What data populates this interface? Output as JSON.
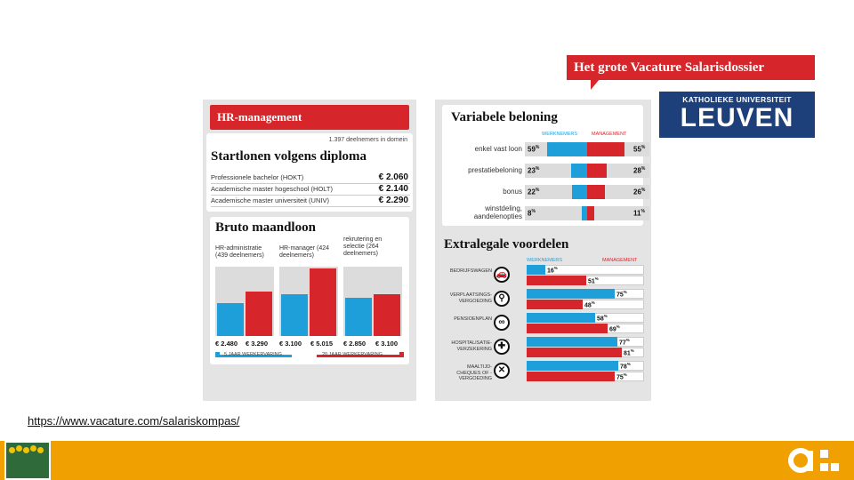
{
  "banner": {
    "title": "Het grote Vacature Salarisdossier"
  },
  "logo": {
    "top": "KATHOLIEKE UNIVERSITEIT",
    "bottom": "LEUVEN"
  },
  "hr_panel": {
    "title": "HR-management",
    "participants": "1.397 deelnemers in domein",
    "startloon_title": "Startlonen volgens diploma",
    "startloon_rows": [
      {
        "label": "Professionele bachelor (HOKT)",
        "value": "€ 2.060"
      },
      {
        "label": "Academische master hogeschool (HOLT)",
        "value": "€ 2.140"
      },
      {
        "label": "Academische master universiteit (UNIV)",
        "value": "€ 2.290"
      }
    ],
    "bruto_title": "Bruto maandloon",
    "groups": [
      {
        "label": "HR-administratie (439 deelnemers)",
        "blue": "€ 2.480",
        "red": "€ 3.290",
        "blue_frac": 0.48,
        "red_frac": 0.64
      },
      {
        "label": "HR-manager (424 deelnemers)",
        "blue": "€ 3.100",
        "red": "€ 5.015",
        "blue_frac": 0.6,
        "red_frac": 0.97
      },
      {
        "label": "rekrutering en selectie (264 deelnemers)",
        "blue": "€ 2.850",
        "red": "€ 3.100",
        "blue_frac": 0.55,
        "red_frac": 0.6
      }
    ],
    "legend_blue": "5 JAAR WERKERVARING",
    "legend_red": "20 JAAR WERKERVARING"
  },
  "variabele": {
    "title": "Variabele beloning",
    "header_wn": "WERKNEMERS",
    "header_mg": "MANAGEMENT",
    "rows": [
      {
        "label": "enkel vast loon",
        "wn": "59",
        "mg": "55",
        "wn_frac": 0.59,
        "mg_frac": 0.55
      },
      {
        "label": "prestatiebeloning",
        "wn": "23",
        "mg": "28",
        "wn_frac": 0.23,
        "mg_frac": 0.28
      },
      {
        "label": "bonus",
        "wn": "22",
        "mg": "26",
        "wn_frac": 0.22,
        "mg_frac": 0.26
      },
      {
        "label": "winstdeling, aandelenopties",
        "wn": "8",
        "mg": "11",
        "wn_frac": 0.08,
        "mg_frac": 0.11
      }
    ],
    "pct": "%"
  },
  "extralegale": {
    "title": "Extralegale voordelen",
    "header_wn": "WERKNEMERS",
    "header_mg": "MANAGEMENT",
    "rows": [
      {
        "label": "BEDRIJFSWAGEN",
        "icon": "car-icon",
        "glyph": "🚗",
        "wn": "16",
        "mg": "51",
        "wn_frac": 0.16,
        "mg_frac": 0.51
      },
      {
        "label": "VERPLAATSINGS-VERGOEDING",
        "icon": "bike-icon",
        "glyph": "⚲",
        "wn": "75",
        "mg": "48",
        "wn_frac": 0.75,
        "mg_frac": 0.48
      },
      {
        "label": "PENSIOENPLAN",
        "icon": "glasses-icon",
        "glyph": "∞",
        "wn": "58",
        "mg": "69",
        "wn_frac": 0.58,
        "mg_frac": 0.69
      },
      {
        "label": "HOSPITALISATIE-VERZEKERING",
        "icon": "medical-cross-icon",
        "glyph": "✚",
        "wn": "77",
        "mg": "81",
        "wn_frac": 0.77,
        "mg_frac": 0.81
      },
      {
        "label": "MAALTIJD-CHEQUES OF -VERGOEDING",
        "icon": "cutlery-icon",
        "glyph": "✕",
        "wn": "78",
        "mg": "75",
        "wn_frac": 0.78,
        "mg_frac": 0.75
      }
    ],
    "pct": "%"
  },
  "source_link": "https://www.vacature.com/salariskompas/",
  "colors": {
    "accent_red": "#d6262b",
    "accent_blue": "#1e9fd9",
    "footer": "#f0a000",
    "logo_blue": "#1d3f7a"
  }
}
